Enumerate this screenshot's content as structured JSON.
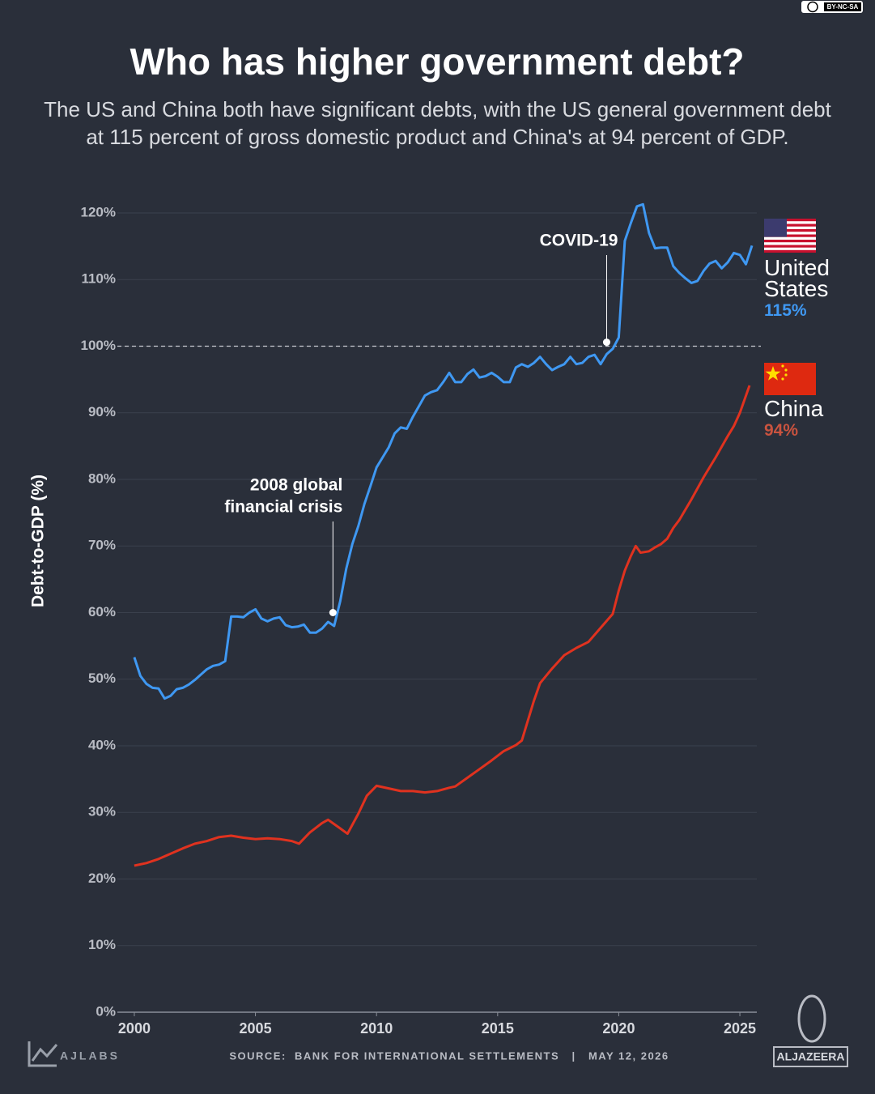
{
  "chart_data": {
    "type": "line",
    "title": "Who has higher government debt?",
    "subtitle": "The US and China both have significant debts, with the US general government debt at 115 percent of gross domestic product and China's at 94 percent of GDP.",
    "y_label": "Debt-to-GDP (%)",
    "xlim": [
      1999.3,
      2025.7
    ],
    "xticks": [
      2000,
      2005,
      2010,
      2015,
      2020,
      2025
    ],
    "ylim": [
      0,
      120
    ],
    "yticks": [
      {
        "value": 0,
        "label": "0%"
      },
      {
        "value": 10,
        "label": "10%"
      },
      {
        "value": 20,
        "label": "20%"
      },
      {
        "value": 30,
        "label": "30%"
      },
      {
        "value": 40,
        "label": "40%"
      },
      {
        "value": 50,
        "label": "50%"
      },
      {
        "value": 60,
        "label": "60%"
      },
      {
        "value": 70,
        "label": "70%"
      },
      {
        "value": 80,
        "label": "80%"
      },
      {
        "value": 90,
        "label": "90%"
      },
      {
        "value": 100,
        "label": "100%"
      },
      {
        "value": 110,
        "label": "110%"
      },
      {
        "value": 120,
        "label": "120%"
      }
    ],
    "grid": true,
    "reference_line": 100,
    "series": [
      {
        "name": "United States",
        "color": "#3f98f2",
        "end_label": "115%",
        "end_label_color": "#3f98f2",
        "x": [
          2000,
          2000.25,
          2000.5,
          2000.75,
          2001,
          2001.25,
          2001.5,
          2001.75,
          2002,
          2002.25,
          2002.5,
          2002.75,
          2003,
          2003.25,
          2003.5,
          2003.75,
          2004,
          2004.25,
          2004.5,
          2004.75,
          2005,
          2005.25,
          2005.5,
          2005.75,
          2006,
          2006.25,
          2006.5,
          2006.75,
          2007,
          2007.25,
          2007.5,
          2007.75,
          2008,
          2008.25,
          2008.5,
          2008.75,
          2009,
          2009.25,
          2009.5,
          2009.75,
          2010,
          2010.25,
          2010.5,
          2010.75,
          2011,
          2011.25,
          2011.5,
          2011.75,
          2012,
          2012.25,
          2012.5,
          2012.75,
          2013,
          2013.25,
          2013.5,
          2013.75,
          2014,
          2014.25,
          2014.5,
          2014.75,
          2015,
          2015.25,
          2015.5,
          2015.75,
          2016,
          2016.25,
          2016.5,
          2016.75,
          2017,
          2017.25,
          2017.5,
          2017.75,
          2018,
          2018.25,
          2018.5,
          2018.75,
          2019,
          2019.25,
          2019.5,
          2019.75,
          2020,
          2020.25,
          2020.5,
          2020.75,
          2021,
          2021.25,
          2021.5,
          2021.75,
          2022,
          2022.25,
          2022.5,
          2022.75,
          2023,
          2023.25,
          2023.5,
          2023.75,
          2024,
          2024.25,
          2024.5,
          2024.75,
          2025,
          2025.25,
          2025.5
        ],
        "values": [
          53.3,
          50.5,
          49.3,
          48.7,
          48.6,
          47.1,
          47.5,
          48.5,
          48.7,
          49.2,
          49.9,
          50.7,
          51.5,
          52.0,
          52.2,
          52.7,
          59.4,
          59.4,
          59.3,
          60.0,
          60.5,
          59.1,
          58.7,
          59.1,
          59.3,
          58.1,
          57.8,
          57.9,
          58.2,
          57.0,
          57.0,
          57.6,
          58.6,
          58.0,
          61.7,
          66.6,
          70.3,
          73.0,
          76.3,
          79.0,
          81.8,
          83.3,
          84.8,
          86.9,
          87.8,
          87.6,
          89.4,
          91.0,
          92.6,
          93.1,
          93.4,
          94.6,
          96.0,
          94.6,
          94.6,
          95.8,
          96.5,
          95.3,
          95.5,
          96.0,
          95.4,
          94.6,
          94.6,
          96.8,
          97.3,
          96.9,
          97.5,
          98.4,
          97.3,
          96.4,
          96.9,
          97.3,
          98.4,
          97.3,
          97.5,
          98.4,
          98.7,
          97.3,
          98.8,
          99.6,
          101.3,
          115.8,
          118.5,
          121.0,
          121.3,
          117.0,
          114.7,
          114.8,
          114.8,
          112.0,
          111.0,
          110.2,
          109.5,
          109.8,
          111.3,
          112.4,
          112.8,
          111.7,
          112.6,
          114.0,
          113.7,
          112.3,
          115.1
        ]
      },
      {
        "name": "China",
        "color": "#e0321f",
        "end_label": "94%",
        "end_label_color": "#c9533f",
        "x": [
          2000,
          2000.5,
          2001,
          2001.5,
          2002,
          2002.5,
          2003,
          2003.5,
          2004,
          2004.5,
          2005,
          2005.5,
          2006,
          2006.5,
          2006.8,
          2007.25,
          2007.75,
          2008,
          2008.5,
          2008.8,
          2009.25,
          2009.6,
          2010,
          2010.5,
          2011,
          2011.5,
          2012,
          2012.5,
          2013,
          2013.25,
          2013.75,
          2014.25,
          2014.75,
          2015.25,
          2015.75,
          2016,
          2016.25,
          2016.5,
          2016.75,
          2017.25,
          2017.75,
          2018.25,
          2018.75,
          2019.25,
          2019.75,
          2020,
          2020.25,
          2020.5,
          2020.7,
          2020.9,
          2021.25,
          2021.5,
          2021.75,
          2022,
          2022.25,
          2022.5,
          2023,
          2023.5,
          2024,
          2024.5,
          2024.75,
          2025,
          2025.4
        ],
        "values": [
          22.0,
          22.4,
          23.0,
          23.8,
          24.6,
          25.3,
          25.7,
          26.3,
          26.5,
          26.2,
          26.0,
          26.1,
          26.0,
          25.7,
          25.3,
          27.0,
          28.4,
          28.9,
          27.6,
          26.8,
          29.8,
          32.5,
          34.0,
          33.6,
          33.2,
          33.2,
          33.0,
          33.2,
          33.7,
          33.9,
          35.2,
          36.5,
          37.8,
          39.2,
          40.1,
          40.8,
          43.8,
          46.8,
          49.4,
          51.6,
          53.6,
          54.7,
          55.6,
          57.7,
          59.8,
          63.3,
          66.3,
          68.5,
          70.0,
          69.0,
          69.2,
          69.8,
          70.3,
          71.1,
          72.7,
          73.9,
          77.0,
          80.3,
          83.3,
          86.5,
          88.0,
          90.0,
          94.1
        ]
      }
    ],
    "annotations": [
      {
        "lines": [
          "2008 global",
          "financial crisis"
        ],
        "x": 2008.2,
        "y": 60
      },
      {
        "lines": [
          "COVID-19"
        ],
        "x": 2019.5,
        "y": 100.6
      }
    ]
  },
  "footer": {
    "source": "SOURCE:  BANK FOR INTERNATIONAL SETTLEMENTS   |   MAY 12, 2026",
    "credit": "AJLABS",
    "publisher": "ALJAZEERA",
    "license": "BY-NC-SA"
  }
}
